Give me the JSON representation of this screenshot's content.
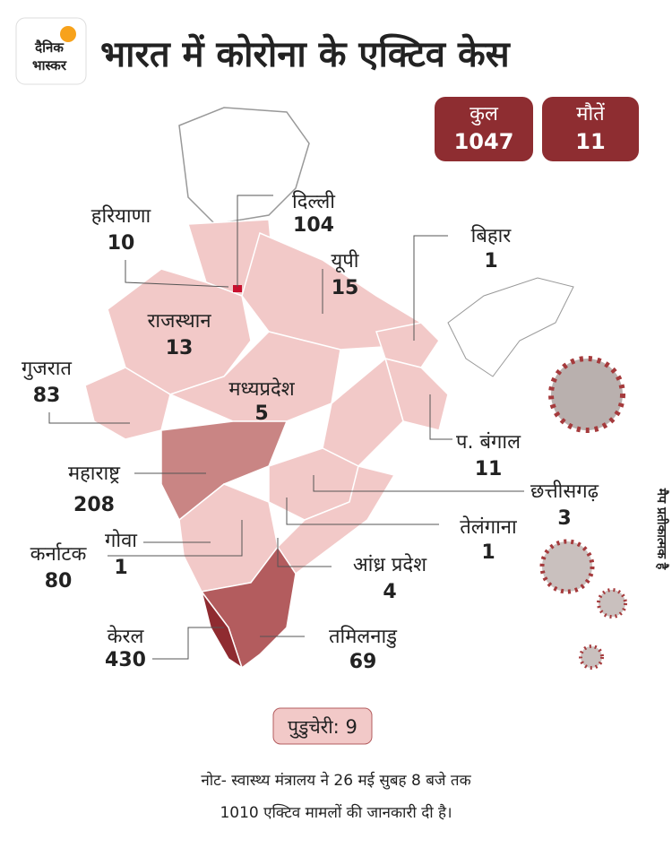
{
  "header": {
    "logo": [
      "दैनिक",
      "भास्कर"
    ],
    "title": "भारत में कोरोना के एक्टिव केस"
  },
  "totals": [
    {
      "label": "कुल",
      "value": 1047
    },
    {
      "label": "मौतें",
      "value": 11
    }
  ],
  "states": [
    {
      "name": "दिल्ली",
      "value": 104
    },
    {
      "name": "हरियाणा",
      "value": 10
    },
    {
      "name": "बिहार",
      "value": 1
    },
    {
      "name": "यूपी",
      "value": 15
    },
    {
      "name": "राजस्थान",
      "value": 13
    },
    {
      "name": "गुजरात",
      "value": 83
    },
    {
      "name": "मध्यप्रदेश",
      "value": 5
    },
    {
      "name": "प. बंगाल",
      "value": 11
    },
    {
      "name": "महाराष्ट्र",
      "value": 208
    },
    {
      "name": "छत्तीसगढ़",
      "value": 3
    },
    {
      "name": "गोवा",
      "value": 1
    },
    {
      "name": "तेलंगाना",
      "value": 1
    },
    {
      "name": "कर्नाटक",
      "value": 80
    },
    {
      "name": "आंध्र प्रदेश",
      "value": 4
    },
    {
      "name": "केरल",
      "value": 430
    },
    {
      "name": "तमिलनाडु",
      "value": 69
    }
  ],
  "puducherry": {
    "name": "पुडुचेरी:",
    "value": 9
  },
  "note": [
    "नोट- स्वास्थ्य मंत्रालय ने 26 मई सुबह 8 बजे तक",
    "1010 एक्टिव मामलों की जानकारी दी है।"
  ],
  "credit": "मैप प्रतीकात्मक है"
}
